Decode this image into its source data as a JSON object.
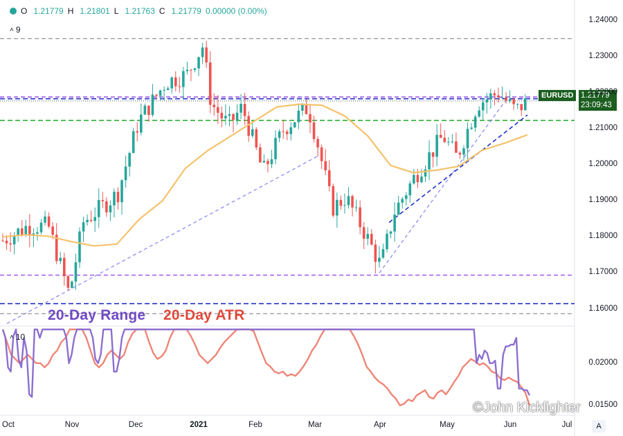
{
  "header": {
    "ohlc": [
      {
        "k": "O",
        "v": "1.21779"
      },
      {
        "k": "H",
        "v": "1.21801"
      },
      {
        "k": "L",
        "v": "1.21763"
      },
      {
        "k": "C",
        "v": "1.21779"
      },
      {
        "k": "",
        "v": "0.00000 (0.00%)"
      }
    ],
    "main_indicator_value": "9",
    "sub_indicator_value": "10"
  },
  "labels": {
    "range": "20-Day Range",
    "atr": "20-Day ATR",
    "watermark": "©John Kicklighter",
    "autoscale": "A"
  },
  "price_tag": {
    "symbol": "EURUSD",
    "price": "1.21779",
    "countdown": "23:09:43"
  },
  "colors": {
    "up": "#26a69a",
    "down": "#ef5350",
    "ma": "#f5c26b",
    "range_line": "#8c6fd0",
    "atr_line": "#ef8577",
    "blue_dashed": "#1e2fc8",
    "green_dashed": "#1fa51f",
    "purple_dashed": "#9b4de8",
    "gray_dashed": "#9e9e9e",
    "trend_light": "#8c8cf0"
  },
  "chart_data": {
    "type": "candlestick",
    "symbol": "EURUSD",
    "timeframe": "daily",
    "x_tick_labels": [
      "Oct",
      "Nov",
      "Dec",
      "2021",
      "Feb",
      "Mar",
      "Apr",
      "May",
      "Jun",
      "Jul"
    ],
    "y_ticks": [
      "1.24000",
      "1.23000",
      "1.22000",
      "1.21000",
      "1.20000",
      "1.19000",
      "1.18000",
      "1.17000",
      "1.16000"
    ],
    "ylim": [
      1.1555,
      1.243
    ],
    "horizontal_levels": [
      {
        "price": 1.235,
        "style": "gray-dashed"
      },
      {
        "price": 1.2188,
        "style": "purple-dashed"
      },
      {
        "price": 1.2183,
        "style": "blue-dashed"
      },
      {
        "price": 1.2177,
        "style": "black-dotted"
      },
      {
        "price": 1.2123,
        "style": "green-dashed"
      },
      {
        "price": 1.1694,
        "style": "purple-dashed"
      },
      {
        "price": 1.1615,
        "style": "blue-dashed"
      },
      {
        "price": 1.1587,
        "style": "gray-dashed"
      }
    ],
    "moving_average": [
      [
        "Oct",
        1.18
      ],
      [
        "Oct",
        1.1806
      ],
      [
        "Oct",
        1.1802
      ],
      [
        "Nov",
        1.1787
      ],
      [
        "Nov",
        1.1775
      ],
      [
        "Nov",
        1.178
      ],
      [
        "Dec",
        1.185
      ],
      [
        "Dec",
        1.19
      ],
      [
        "Dec",
        1.199
      ],
      [
        "Dec",
        1.204
      ],
      [
        "2021",
        1.208
      ],
      [
        "2021",
        1.212
      ],
      [
        "Feb",
        1.216
      ],
      [
        "Feb",
        1.2168
      ],
      [
        "Mar",
        1.2165
      ],
      [
        "Mar",
        1.2135
      ],
      [
        "Mar",
        1.208
      ],
      [
        "Apr",
        1.1998
      ],
      [
        "Apr",
        1.1978
      ],
      [
        "May",
        1.1985
      ],
      [
        "May",
        1.1996
      ],
      [
        "May",
        1.204
      ],
      [
        "Jun",
        1.206
      ],
      [
        "Jun",
        1.2083
      ]
    ],
    "range_series_ylim": [
      0.014,
      0.024
    ],
    "range_series_y_ticks": [
      "0.02000",
      "0.01500"
    ],
    "range_20d": [
      0.0245,
      0.023,
      0.0195,
      0.019,
      0.0232,
      0.024,
      0.0205,
      0.0195,
      0.023,
      0.0215,
      0.0163,
      0.016,
      0.024,
      0.024,
      0.023,
      0.0245,
      0.0245,
      0.0245,
      0.0245,
      0.0245,
      0.0245,
      0.0245,
      0.0245,
      0.0245,
      0.023,
      0.02,
      0.021,
      0.023,
      0.024,
      0.0245,
      0.0245,
      0.0245,
      0.0245,
      0.0245,
      0.023,
      0.0205,
      0.02,
      0.021,
      0.0245,
      0.0245,
      0.0245,
      0.0245,
      0.019,
      0.019,
      0.0205,
      0.023,
      0.0245,
      0.0245,
      0.0245,
      0.0245,
      0.0245,
      0.0245,
      0.0245,
      0.0245,
      0.0245,
      0.0245,
      0.0245,
      0.0245,
      0.0245,
      0.0245,
      0.0245,
      0.0245,
      0.0245,
      0.0245,
      0.0245,
      0.0245,
      0.0245,
      0.0245,
      0.0245,
      0.0245,
      0.0245,
      0.0245,
      0.0245,
      0.0245,
      0.0245,
      0.0245,
      0.0245,
      0.0245,
      0.0245,
      0.0245,
      0.0245,
      0.0245,
      0.0245,
      0.0245,
      0.0245,
      0.0245,
      0.0245,
      0.0245,
      0.0245,
      0.0245,
      0.0245,
      0.0245,
      0.0245,
      0.0245,
      0.0245,
      0.0245,
      0.0245,
      0.0245,
      0.0245,
      0.0245,
      0.0245,
      0.0245,
      0.0245,
      0.0245,
      0.0245,
      0.0245,
      0.0245,
      0.0245,
      0.0245,
      0.0245,
      0.0245,
      0.0245,
      0.0245,
      0.0245,
      0.0245,
      0.0245,
      0.0245,
      0.0245,
      0.0245,
      0.0245,
      0.0245,
      0.0245,
      0.0245,
      0.0245,
      0.0245,
      0.0245,
      0.0245,
      0.0245,
      0.0245,
      0.0245,
      0.0245,
      0.0245,
      0.0245,
      0.0245,
      0.0245,
      0.0245,
      0.0245,
      0.0245,
      0.0245,
      0.0245,
      0.0245,
      0.0245,
      0.0245,
      0.0245,
      0.0245,
      0.0245,
      0.0245,
      0.0245,
      0.0245,
      0.0245,
      0.0245,
      0.0245,
      0.0245,
      0.0245,
      0.0245,
      0.0245,
      0.0245,
      0.0245,
      0.0245,
      0.0245,
      0.0245,
      0.0245,
      0.0245,
      0.0245,
      0.0245,
      0.0245,
      0.0245,
      0.0245,
      0.0245,
      0.0245,
      0.0245,
      0.0245,
      0.0245,
      0.0245,
      0.0245,
      0.0245,
      0.0245,
      0.0245,
      0.0245,
      0.02,
      0.021,
      0.0205,
      0.0215,
      0.0212,
      0.02,
      0.02,
      0.0203,
      0.017,
      0.017,
      0.021,
      0.022,
      0.022,
      0.0222,
      0.0222,
      0.023,
      0.017,
      0.017,
      0.0168,
      0.0168,
      0.0162
    ],
    "atr_20d": [
      0.0245,
      0.0225,
      0.021,
      0.0205,
      0.02,
      0.0205,
      0.021,
      0.0205,
      0.02,
      0.02,
      0.0195,
      0.02,
      0.021,
      0.0215,
      0.0225,
      0.023,
      0.024,
      0.0245,
      0.0245,
      0.024,
      0.023,
      0.0215,
      0.02,
      0.0195,
      0.02,
      0.021,
      0.0215,
      0.021,
      0.0205,
      0.021,
      0.0225,
      0.0235,
      0.0245,
      0.0245,
      0.024,
      0.0225,
      0.0212,
      0.0205,
      0.0208,
      0.0215,
      0.023,
      0.024,
      0.0245,
      0.0245,
      0.0245,
      0.0232,
      0.0222,
      0.021,
      0.0205,
      0.02,
      0.0205,
      0.021,
      0.0218,
      0.0225,
      0.023,
      0.0235,
      0.0245,
      0.0245,
      0.0245,
      0.0245,
      0.0238,
      0.0225,
      0.0212,
      0.02,
      0.0196,
      0.019,
      0.0188,
      0.019,
      0.0185,
      0.0187,
      0.0185,
      0.019,
      0.0197,
      0.0205,
      0.0215,
      0.0222,
      0.0232,
      0.024,
      0.0245,
      0.0245,
      0.0245,
      0.0245,
      0.0245,
      0.024,
      0.0232,
      0.0222,
      0.021,
      0.0196,
      0.019,
      0.0183,
      0.0178,
      0.0175,
      0.017,
      0.0163,
      0.0158,
      0.015,
      0.0152,
      0.0157,
      0.0155,
      0.0162,
      0.0165,
      0.0168,
      0.016,
      0.0158,
      0.0165,
      0.0168,
      0.0163,
      0.017,
      0.0178,
      0.0185,
      0.0195,
      0.02,
      0.0205,
      0.0202,
      0.0198,
      0.02,
      0.0196,
      0.019,
      0.0188,
      0.0182,
      0.018,
      0.0183,
      0.018,
      0.0178,
      0.0172,
      0.0165,
      0.015
    ]
  }
}
